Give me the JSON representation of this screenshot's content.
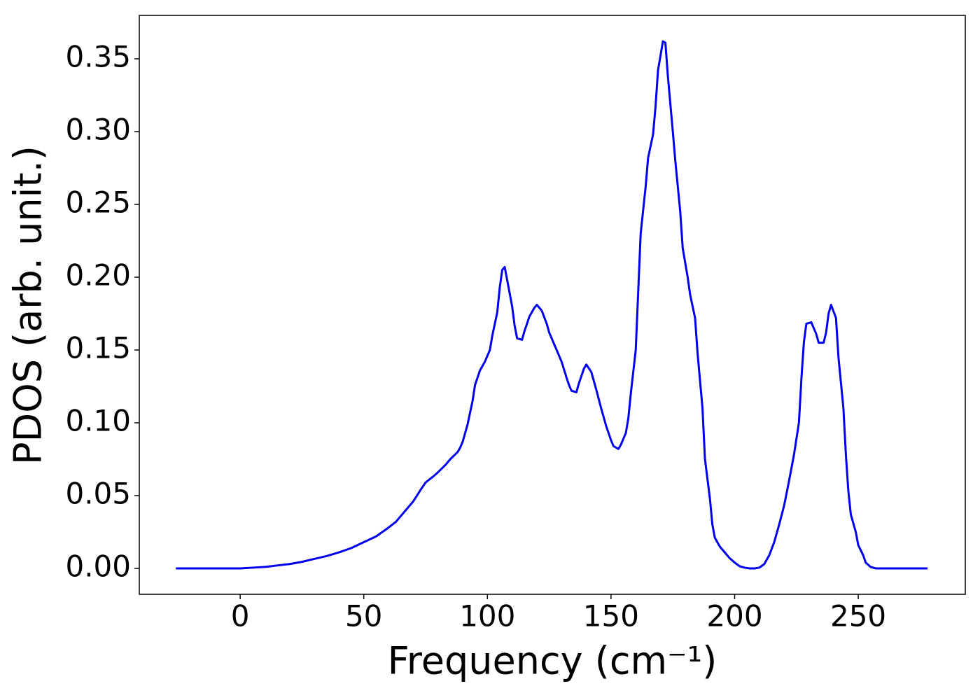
{
  "chart_data": {
    "type": "line",
    "xlabel": "Frequency (cm⁻¹)",
    "ylabel": "PDOS (arb. unit.)",
    "xlim": [
      -40.8,
      293.3
    ],
    "ylim": [
      -0.0178,
      0.3798
    ],
    "xticks": [
      0,
      50,
      100,
      150,
      200,
      250
    ],
    "yticks": [
      {
        "value": 0,
        "label": "0.00"
      },
      {
        "value": 0.05,
        "label": "0.05"
      },
      {
        "value": 0.1,
        "label": "0.10"
      },
      {
        "value": 0.15,
        "label": "0.15"
      },
      {
        "value": 0.2,
        "label": "0.20"
      },
      {
        "value": 0.25,
        "label": "0.25"
      },
      {
        "value": 0.3,
        "label": "0.30"
      },
      {
        "value": 0.35,
        "label": "0.35"
      }
    ],
    "x": [
      -26,
      0,
      5,
      10,
      15,
      20,
      25,
      30,
      35,
      40,
      45,
      50,
      55,
      60,
      63,
      66,
      70,
      73,
      75,
      78,
      80,
      83,
      85,
      88,
      89,
      90,
      92,
      94,
      95,
      97,
      99,
      101,
      102,
      104,
      105,
      106,
      107,
      108,
      110,
      111,
      112,
      114,
      115,
      117,
      119,
      120,
      122,
      124,
      125,
      128,
      130,
      132,
      133,
      134,
      136,
      137,
      139,
      140,
      142,
      144,
      146,
      148,
      150,
      151,
      153,
      154,
      156,
      157,
      158,
      160,
      161,
      162,
      164,
      165,
      167,
      168,
      169,
      171,
      172,
      173,
      175,
      176,
      178,
      179,
      181,
      182,
      184,
      185,
      187,
      188,
      190,
      191,
      192,
      194,
      196,
      198,
      200,
      202,
      204,
      206,
      208,
      210,
      212,
      214,
      216,
      218,
      220,
      222,
      224,
      226,
      227,
      228,
      229,
      231,
      233,
      234,
      236,
      237,
      238,
      239,
      241,
      242,
      244,
      245,
      246,
      247,
      249,
      250,
      252,
      253,
      255,
      257,
      278
    ],
    "series": [
      {
        "color": "#0000ee",
        "values": [
          0,
          0,
          0.0005,
          0.001,
          0.002,
          0.003,
          0.0045,
          0.0065,
          0.0085,
          0.011,
          0.014,
          0.018,
          0.022,
          0.028,
          0.032,
          0.038,
          0.046,
          0.054,
          0.059,
          0.063,
          0.066,
          0.071,
          0.075,
          0.08,
          0.083,
          0.087,
          0.099,
          0.115,
          0.126,
          0.136,
          0.142,
          0.15,
          0.16,
          0.176,
          0.193,
          0.205,
          0.207,
          0.198,
          0.18,
          0.167,
          0.158,
          0.157,
          0.163,
          0.173,
          0.179,
          0.181,
          0.177,
          0.168,
          0.162,
          0.15,
          0.142,
          0.131,
          0.126,
          0.122,
          0.121,
          0.127,
          0.137,
          0.14,
          0.135,
          0.123,
          0.11,
          0.098,
          0.088,
          0.084,
          0.082,
          0.085,
          0.093,
          0.103,
          0.12,
          0.15,
          0.19,
          0.23,
          0.262,
          0.282,
          0.298,
          0.317,
          0.342,
          0.362,
          0.361,
          0.338,
          0.3,
          0.28,
          0.245,
          0.22,
          0.2,
          0.188,
          0.172,
          0.148,
          0.11,
          0.075,
          0.048,
          0.03,
          0.021,
          0.015,
          0.011,
          0.007,
          0.004,
          0.0015,
          0.0005,
          0,
          0,
          0.0005,
          0.003,
          0.009,
          0.018,
          0.03,
          0.043,
          0.06,
          0.078,
          0.1,
          0.13,
          0.155,
          0.168,
          0.169,
          0.161,
          0.155,
          0.155,
          0.162,
          0.175,
          0.181,
          0.172,
          0.145,
          0.11,
          0.078,
          0.053,
          0.037,
          0.025,
          0.016,
          0.009,
          0.004,
          0.001,
          0,
          0
        ]
      }
    ]
  }
}
